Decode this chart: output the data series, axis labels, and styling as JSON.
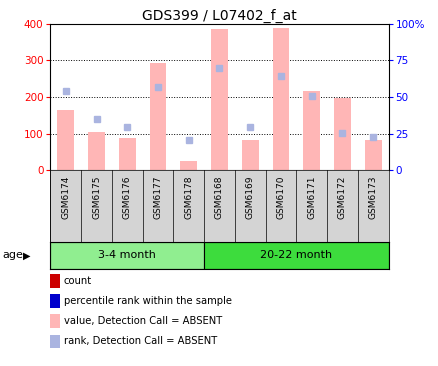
{
  "title": "GDS399 / L07402_f_at",
  "samples": [
    "GSM6174",
    "GSM6175",
    "GSM6176",
    "GSM6177",
    "GSM6178",
    "GSM6168",
    "GSM6169",
    "GSM6170",
    "GSM6171",
    "GSM6172",
    "GSM6173"
  ],
  "absent_values": [
    165,
    103,
    87,
    292,
    25,
    385,
    82,
    388,
    215,
    198,
    82
  ],
  "absent_ranks": [
    215,
    140,
    118,
    228,
    82,
    278,
    118,
    258,
    202,
    102,
    92
  ],
  "groups": [
    {
      "label": "3-4 month",
      "start": 0,
      "end": 5,
      "color": "#90ee90"
    },
    {
      "label": "20-22 month",
      "start": 5,
      "end": 11,
      "color": "#3ddc3d"
    }
  ],
  "ylim_left": [
    0,
    400
  ],
  "ylim_right": [
    0,
    100
  ],
  "yticks_left": [
    0,
    100,
    200,
    300,
    400
  ],
  "yticks_right": [
    0,
    25,
    50,
    75,
    100
  ],
  "bar_color_absent": "#ffb6b6",
  "rank_color_absent": "#aab4e0",
  "hline_vals": [
    100,
    200,
    300
  ],
  "age_label": "age",
  "legend_items": [
    {
      "color": "#cc0000",
      "label": "count"
    },
    {
      "color": "#0000cc",
      "label": "percentile rank within the sample"
    },
    {
      "color": "#ffb6b6",
      "label": "value, Detection Call = ABSENT"
    },
    {
      "color": "#aab4e0",
      "label": "rank, Detection Call = ABSENT"
    }
  ]
}
